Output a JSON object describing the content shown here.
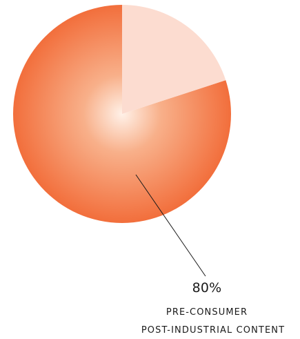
{
  "chart_data": {
    "type": "pie",
    "slices": [
      {
        "value": 80,
        "color": "#f26d3a"
      },
      {
        "value": 20,
        "color": "#fcdcd0"
      }
    ],
    "data_label": {
      "value_text": "80%",
      "line1": "PRE-CONSUMER",
      "line2": "POST-INDUSTRIAL CONTENT"
    },
    "title": "",
    "legend": "none"
  }
}
